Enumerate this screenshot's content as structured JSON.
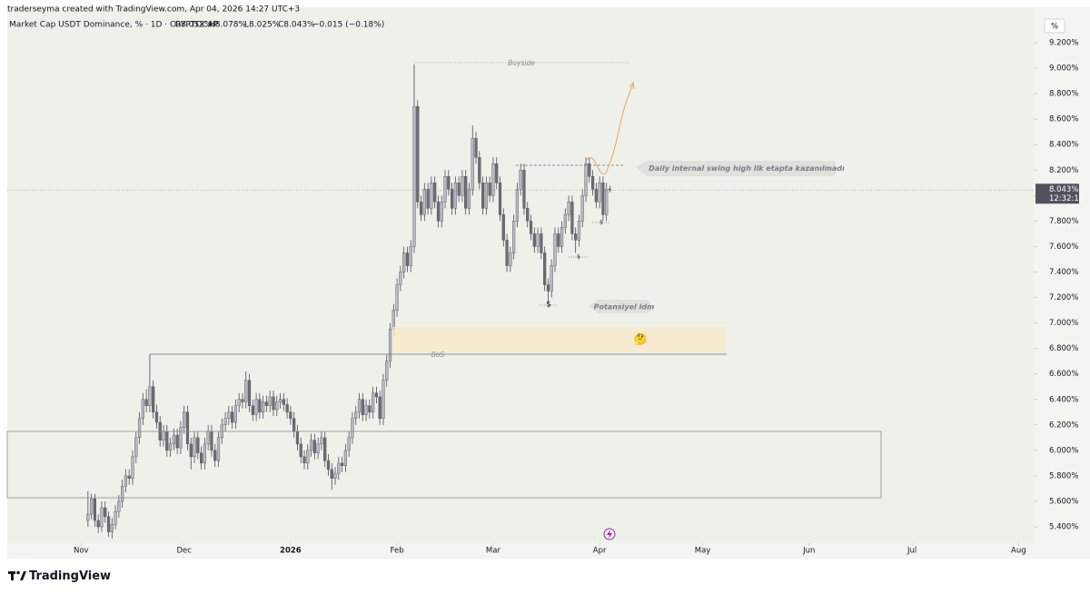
{
  "chart_data": {
    "type": "candlestick",
    "byline": "traderseyma created with TradingView.com, Apr 04, 2026 14:27 UTC+3",
    "symbol": "Market Cap USDT Dominance, % · 1D · CRYPTOCAP",
    "last_labels": {
      "open": "O8.052%",
      "high": "H8.078%",
      "low": "L8.025%",
      "close": "C8.043%",
      "change": "−0.015 (−0.18%)"
    },
    "y_unit": "%",
    "last_price_label": "8.043%",
    "countdown": "12:32:15",
    "annotations": {
      "buyside": "Buyside",
      "bos": "BoS",
      "swing": "Daily internal swing high ilk etapta kazanılmadı",
      "potential": "Potansiyel ldm",
      "sweeps": [
        "$",
        "$",
        "$"
      ],
      "emoji": "🤔"
    },
    "brand": "TradingView",
    "up_color": "#b8bbc2",
    "down_color": "#6a6d75",
    "ylim": [
      5.272,
      9.478
    ],
    "yticks": [
      {
        "value": 5.4,
        "label": "5.400%"
      },
      {
        "value": 5.6,
        "label": "5.600%"
      },
      {
        "value": 5.8,
        "label": "5.800%"
      },
      {
        "value": 6.0,
        "label": "6.000%"
      },
      {
        "value": 6.2,
        "label": "6.200%"
      },
      {
        "value": 6.4,
        "label": "6.400%"
      },
      {
        "value": 6.6,
        "label": "6.600%"
      },
      {
        "value": 6.8,
        "label": "6.800%"
      },
      {
        "value": 7.0,
        "label": "7.000%"
      },
      {
        "value": 7.2,
        "label": "7.200%"
      },
      {
        "value": 7.4,
        "label": "7.400%"
      },
      {
        "value": 7.6,
        "label": "7.600%"
      },
      {
        "value": 7.8,
        "label": "7.800%"
      },
      {
        "value": 8.0,
        "label": "8.000%"
      },
      {
        "value": 8.2,
        "label": "8.200%"
      },
      {
        "value": 8.4,
        "label": "8.400%"
      },
      {
        "value": 8.6,
        "label": "8.600%"
      },
      {
        "value": 8.8,
        "label": "8.800%"
      },
      {
        "value": 9.0,
        "label": "9.000%"
      },
      {
        "value": 9.2,
        "label": "9.200%"
      }
    ],
    "xlim": [
      -23.5,
      275.4
    ],
    "xticks": [
      {
        "value": -2,
        "label": "Nov"
      },
      {
        "value": 28,
        "label": "Dec"
      },
      {
        "value": 59,
        "label": "2026"
      },
      {
        "value": 90,
        "label": "Feb"
      },
      {
        "value": 118,
        "label": "Mar"
      },
      {
        "value": 149,
        "label": "Apr"
      },
      {
        "value": 179,
        "label": "May"
      },
      {
        "value": 210,
        "label": "Jun"
      },
      {
        "value": 240,
        "label": "Jul"
      },
      {
        "value": 271,
        "label": "Aug"
      }
    ],
    "candles": [
      [
        5.45,
        5.68,
        5.4,
        5.5
      ],
      [
        5.5,
        5.66,
        5.46,
        5.62
      ],
      [
        5.62,
        5.66,
        5.4,
        5.45
      ],
      [
        5.45,
        5.5,
        5.35,
        5.4
      ],
      [
        5.4,
        5.6,
        5.36,
        5.55
      ],
      [
        5.55,
        5.6,
        5.43,
        5.48
      ],
      [
        5.48,
        5.52,
        5.32,
        5.36
      ],
      [
        5.36,
        5.47,
        5.31,
        5.42
      ],
      [
        5.42,
        5.57,
        5.38,
        5.52
      ],
      [
        5.52,
        5.65,
        5.47,
        5.6
      ],
      [
        5.6,
        5.77,
        5.55,
        5.72
      ],
      [
        5.72,
        5.85,
        5.67,
        5.8
      ],
      [
        5.8,
        5.85,
        5.73,
        5.78
      ],
      [
        5.78,
        6.0,
        5.73,
        5.95
      ],
      [
        5.95,
        6.15,
        5.9,
        6.1
      ],
      [
        6.1,
        6.3,
        6.05,
        6.25
      ],
      [
        6.25,
        6.45,
        6.2,
        6.4
      ],
      [
        6.4,
        6.48,
        6.3,
        6.35
      ],
      [
        6.35,
        6.75,
        6.3,
        6.5
      ],
      [
        6.5,
        6.55,
        6.25,
        6.3
      ],
      [
        6.3,
        6.36,
        6.17,
        6.22
      ],
      [
        6.22,
        6.27,
        6.03,
        6.08
      ],
      [
        6.08,
        6.2,
        6.03,
        6.15
      ],
      [
        6.15,
        6.2,
        5.95,
        6.0
      ],
      [
        6.0,
        6.1,
        5.95,
        6.05
      ],
      [
        6.05,
        6.17,
        6.0,
        6.12
      ],
      [
        6.12,
        6.17,
        5.97,
        6.02
      ],
      [
        6.02,
        6.23,
        5.97,
        6.18
      ],
      [
        6.18,
        6.35,
        6.13,
        6.3
      ],
      [
        6.3,
        6.35,
        6.0,
        6.05
      ],
      [
        6.05,
        6.1,
        5.85,
        5.95
      ],
      [
        5.95,
        6.15,
        5.9,
        6.1
      ],
      [
        6.1,
        6.15,
        5.93,
        5.98
      ],
      [
        5.98,
        6.03,
        5.85,
        5.9
      ],
      [
        5.9,
        6.1,
        5.85,
        6.05
      ],
      [
        6.05,
        6.2,
        6.0,
        6.15
      ],
      [
        6.15,
        6.2,
        5.95,
        6.0
      ],
      [
        6.0,
        6.05,
        5.87,
        5.92
      ],
      [
        5.92,
        6.15,
        5.87,
        6.1
      ],
      [
        6.1,
        6.25,
        6.05,
        6.2
      ],
      [
        6.2,
        6.3,
        6.15,
        6.25
      ],
      [
        6.25,
        6.35,
        6.2,
        6.3
      ],
      [
        6.3,
        6.35,
        6.17,
        6.22
      ],
      [
        6.22,
        6.4,
        6.17,
        6.35
      ],
      [
        6.35,
        6.45,
        6.3,
        6.4
      ],
      [
        6.4,
        6.45,
        6.33,
        6.38
      ],
      [
        6.38,
        6.62,
        6.33,
        6.55
      ],
      [
        6.55,
        6.6,
        6.3,
        6.35
      ],
      [
        6.35,
        6.4,
        6.23,
        6.28
      ],
      [
        6.28,
        6.45,
        6.23,
        6.4
      ],
      [
        6.4,
        6.45,
        6.25,
        6.3
      ],
      [
        6.3,
        6.43,
        6.25,
        6.38
      ],
      [
        6.38,
        6.43,
        6.3,
        6.35
      ],
      [
        6.35,
        6.47,
        6.3,
        6.42
      ],
      [
        6.42,
        6.47,
        6.27,
        6.32
      ],
      [
        6.32,
        6.43,
        6.27,
        6.38
      ],
      [
        6.38,
        6.45,
        6.33,
        6.4
      ],
      [
        6.4,
        6.45,
        6.31,
        6.36
      ],
      [
        6.36,
        6.41,
        6.25,
        6.3
      ],
      [
        6.3,
        6.35,
        6.2,
        6.25
      ],
      [
        6.25,
        6.3,
        6.1,
        6.15
      ],
      [
        6.15,
        6.2,
        6.0,
        6.05
      ],
      [
        6.05,
        6.1,
        5.9,
        5.95
      ],
      [
        5.95,
        6.0,
        5.85,
        5.9
      ],
      [
        5.9,
        6.05,
        5.85,
        6.0
      ],
      [
        6.0,
        6.13,
        5.95,
        6.08
      ],
      [
        6.08,
        6.13,
        5.93,
        5.98
      ],
      [
        5.98,
        6.1,
        5.93,
        6.05
      ],
      [
        6.05,
        6.15,
        6.0,
        6.1
      ],
      [
        6.1,
        6.15,
        5.87,
        5.92
      ],
      [
        5.92,
        5.97,
        5.8,
        5.85
      ],
      [
        5.85,
        5.9,
        5.69,
        5.78
      ],
      [
        5.78,
        5.87,
        5.73,
        5.82
      ],
      [
        5.82,
        5.95,
        5.77,
        5.9
      ],
      [
        5.9,
        5.95,
        5.83,
        5.88
      ],
      [
        5.88,
        6.05,
        5.83,
        6.0
      ],
      [
        6.0,
        6.15,
        5.95,
        6.1
      ],
      [
        6.1,
        6.3,
        6.05,
        6.25
      ],
      [
        6.25,
        6.35,
        6.2,
        6.3
      ],
      [
        6.3,
        6.45,
        6.25,
        6.4
      ],
      [
        6.4,
        6.45,
        6.23,
        6.28
      ],
      [
        6.28,
        6.4,
        6.23,
        6.35
      ],
      [
        6.35,
        6.4,
        6.25,
        6.3
      ],
      [
        6.3,
        6.5,
        6.25,
        6.45
      ],
      [
        6.45,
        6.5,
        6.37,
        6.42
      ],
      [
        6.42,
        6.47,
        6.2,
        6.25
      ],
      [
        6.25,
        6.6,
        6.2,
        6.55
      ],
      [
        6.55,
        6.75,
        6.5,
        6.7
      ],
      [
        6.7,
        7.0,
        6.65,
        6.95
      ],
      [
        6.95,
        7.15,
        6.9,
        7.1
      ],
      [
        7.1,
        7.35,
        7.05,
        7.3
      ],
      [
        7.3,
        7.45,
        7.25,
        7.4
      ],
      [
        7.4,
        7.6,
        7.35,
        7.55
      ],
      [
        7.55,
        7.6,
        7.4,
        7.45
      ],
      [
        7.45,
        7.65,
        7.4,
        7.6
      ],
      [
        7.6,
        9.03,
        7.55,
        8.7
      ],
      [
        8.7,
        8.75,
        7.9,
        7.95
      ],
      [
        7.95,
        8.0,
        7.8,
        7.85
      ],
      [
        7.85,
        8.1,
        7.8,
        8.05
      ],
      [
        8.05,
        8.1,
        7.85,
        7.9
      ],
      [
        7.9,
        8.15,
        7.85,
        8.1
      ],
      [
        8.1,
        8.15,
        7.9,
        7.95
      ],
      [
        7.95,
        8.0,
        7.75,
        7.8
      ],
      [
        7.8,
        8.0,
        7.75,
        7.95
      ],
      [
        7.95,
        8.2,
        7.9,
        8.15
      ],
      [
        8.15,
        8.2,
        8.0,
        8.05
      ],
      [
        8.05,
        8.1,
        7.85,
        7.9
      ],
      [
        7.9,
        8.15,
        7.85,
        8.1
      ],
      [
        8.1,
        8.15,
        7.95,
        8.0
      ],
      [
        8.0,
        8.2,
        7.95,
        8.15
      ],
      [
        8.15,
        8.2,
        7.85,
        7.9
      ],
      [
        7.9,
        8.1,
        7.85,
        8.05
      ],
      [
        8.05,
        8.55,
        8.0,
        8.45
      ],
      [
        8.45,
        8.5,
        8.25,
        8.3
      ],
      [
        8.3,
        8.35,
        8.05,
        8.1
      ],
      [
        8.1,
        8.15,
        7.85,
        7.9
      ],
      [
        7.9,
        8.15,
        7.85,
        8.1
      ],
      [
        8.1,
        8.15,
        7.95,
        8.0
      ],
      [
        8.0,
        8.3,
        7.95,
        8.25
      ],
      [
        8.25,
        8.3,
        8.05,
        8.1
      ],
      [
        8.1,
        8.15,
        7.8,
        7.85
      ],
      [
        7.85,
        7.9,
        7.6,
        7.65
      ],
      [
        7.65,
        7.7,
        7.4,
        7.45
      ],
      [
        7.45,
        7.6,
        7.4,
        7.55
      ],
      [
        7.55,
        7.85,
        7.5,
        7.8
      ],
      [
        7.8,
        8.1,
        7.75,
        8.05
      ],
      [
        8.05,
        8.25,
        8.0,
        8.2
      ],
      [
        8.2,
        8.25,
        7.85,
        7.9
      ],
      [
        7.9,
        7.95,
        7.75,
        7.8
      ],
      [
        7.8,
        7.85,
        7.65,
        7.7
      ],
      [
        7.7,
        7.75,
        7.55,
        7.6
      ],
      [
        7.6,
        7.75,
        7.55,
        7.7
      ],
      [
        7.7,
        7.75,
        7.5,
        7.55
      ],
      [
        7.55,
        7.6,
        7.25,
        7.3
      ],
      [
        7.3,
        7.35,
        7.16,
        7.25
      ],
      [
        7.25,
        7.5,
        7.2,
        7.45
      ],
      [
        7.45,
        7.75,
        7.4,
        7.7
      ],
      [
        7.7,
        7.75,
        7.55,
        7.6
      ],
      [
        7.6,
        7.8,
        7.55,
        7.75
      ],
      [
        7.75,
        7.9,
        7.7,
        7.85
      ],
      [
        7.85,
        8.0,
        7.8,
        7.95
      ],
      [
        7.95,
        8.0,
        7.65,
        7.7
      ],
      [
        7.7,
        7.75,
        7.55,
        7.65
      ],
      [
        7.65,
        7.85,
        7.6,
        7.8
      ],
      [
        7.8,
        8.05,
        7.75,
        8.0
      ],
      [
        8.0,
        8.3,
        7.95,
        8.25
      ],
      [
        8.25,
        8.3,
        8.1,
        8.15
      ],
      [
        8.15,
        8.2,
        8.0,
        8.05
      ],
      [
        8.05,
        8.1,
        7.9,
        7.95
      ],
      [
        7.95,
        8.15,
        7.9,
        8.1
      ],
      [
        8.1,
        8.15,
        7.8,
        7.85
      ],
      [
        7.85,
        8.1,
        7.8,
        8.05
      ],
      [
        8.052,
        8.078,
        8.025,
        8.043
      ]
    ]
  }
}
